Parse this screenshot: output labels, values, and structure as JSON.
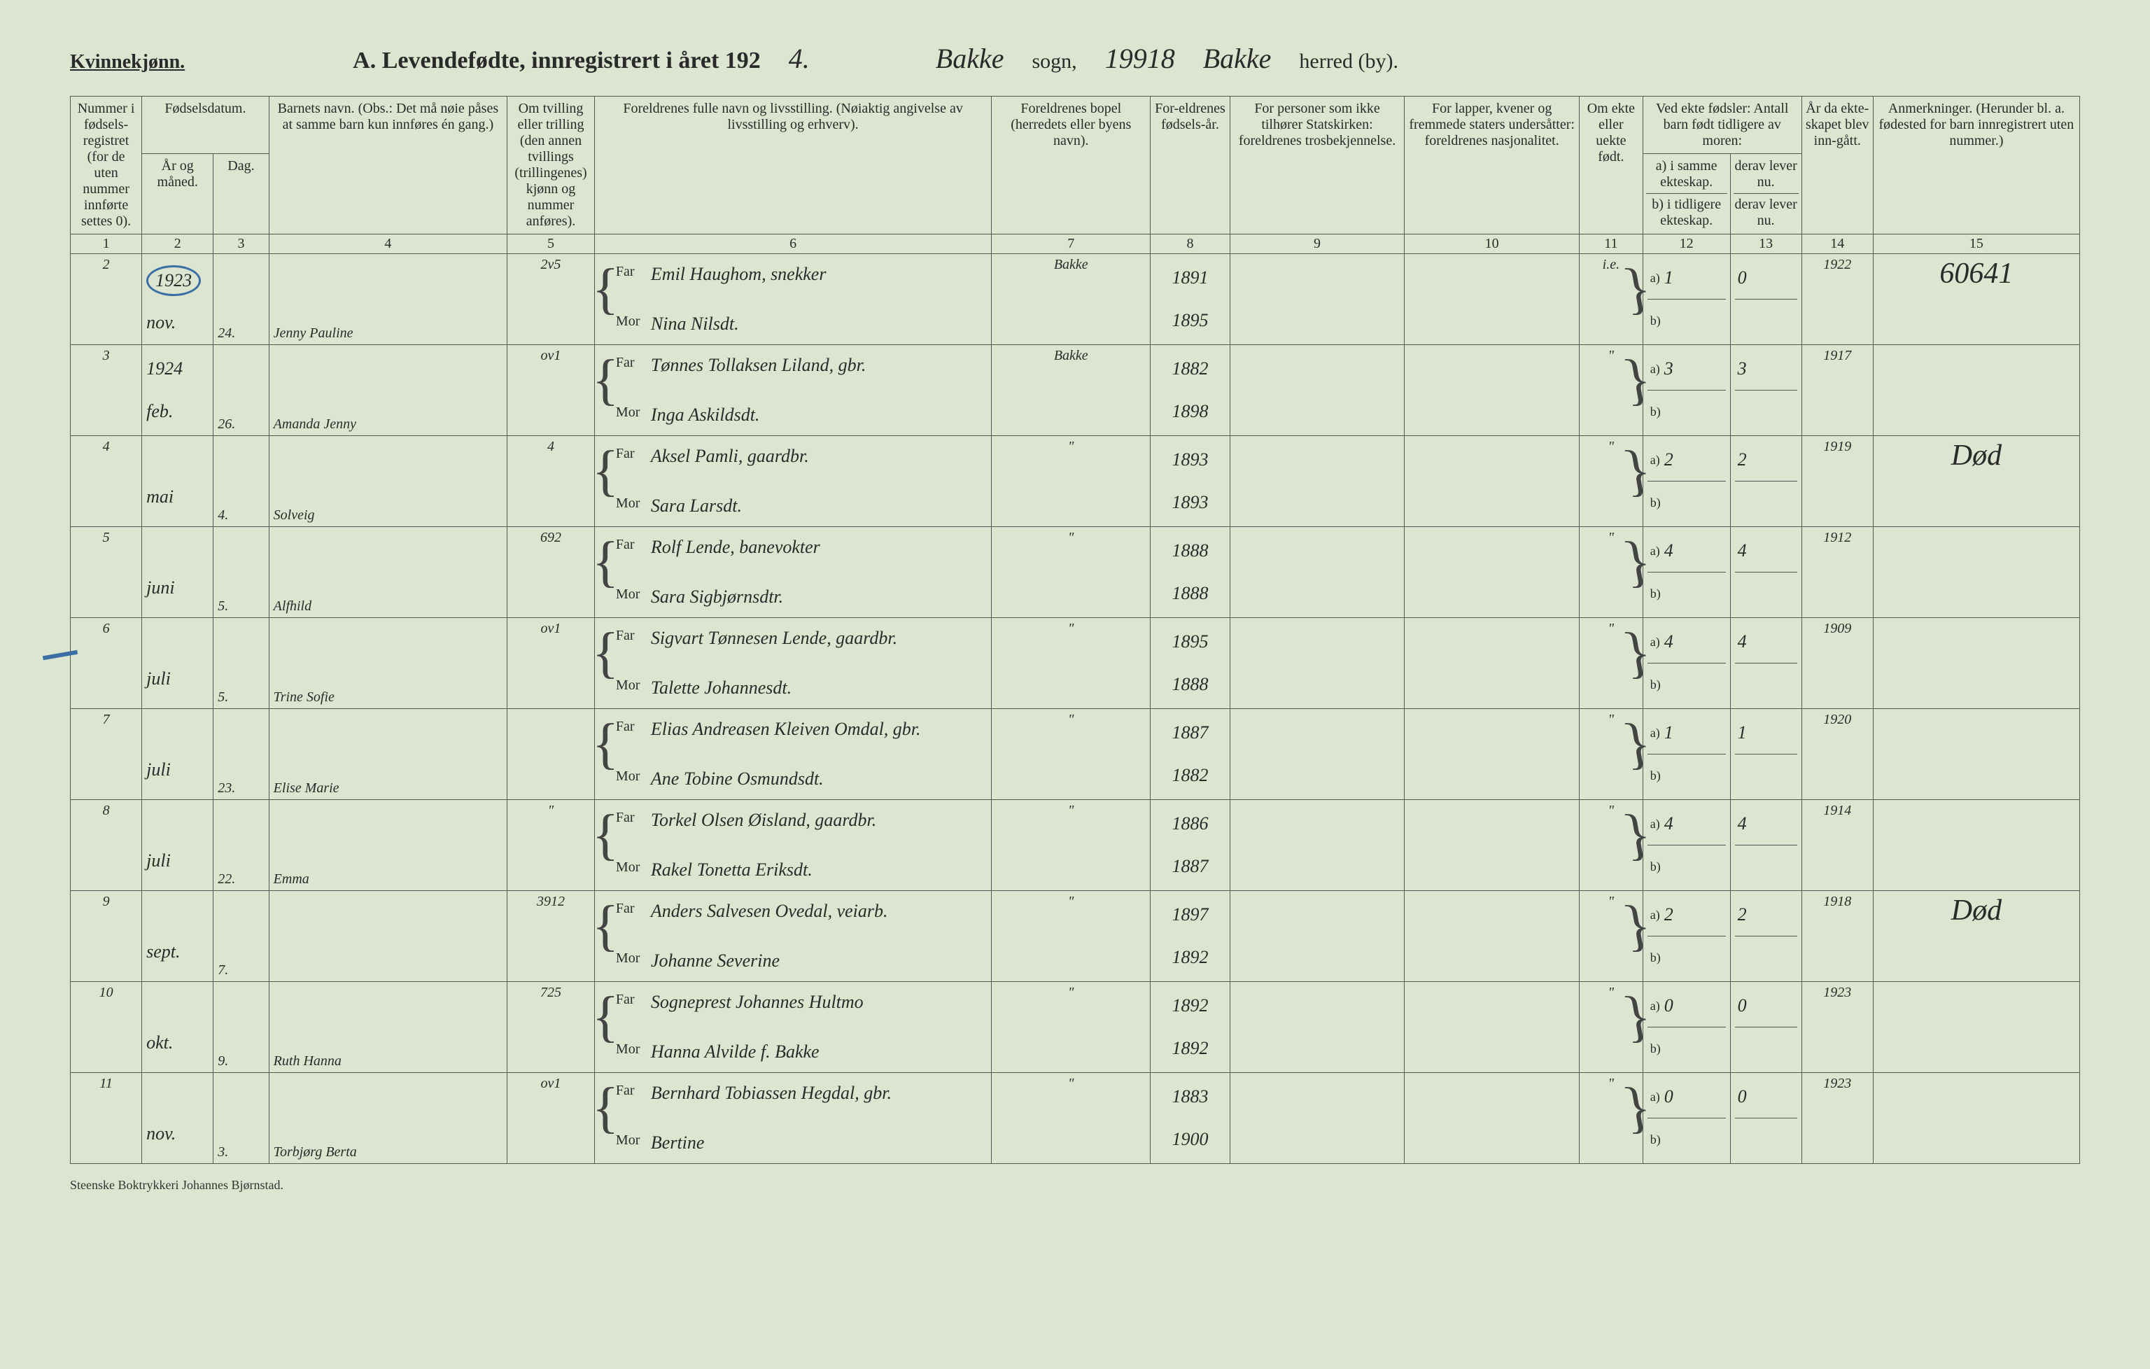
{
  "header": {
    "gender": "Kvinnekjønn.",
    "title_prefix": "A.  Levendefødte, innregistrert i året 192",
    "title_year_hand": "4.",
    "sogn_value": "Bakke",
    "sogn_label": "sogn,",
    "number_value": "19918",
    "herred_value": "Bakke",
    "herred_label": "herred (by)."
  },
  "columns": {
    "c1": "Nummer i fødsels-registret (for de uten nummer innførte settes 0).",
    "c2_top": "Fødselsdatum.",
    "c2a": "År og måned.",
    "c2b": "Dag.",
    "c4": "Barnets navn.\n(Obs.: Det må nøie påses at samme barn kun innføres én gang.)",
    "c5": "Om tvilling eller trilling (den annen tvillings (trillingenes) kjønn og nummer anføres).",
    "c6": "Foreldrenes fulle navn og livsstilling.\n(Nøiaktig angivelse av livsstilling og erhverv).",
    "c7": "Foreldrenes bopel (herredets eller byens navn).",
    "c8": "For-eldrenes fødsels-år.",
    "c9": "For personer som ikke tilhører Statskirken: foreldrenes trosbekjennelse.",
    "c10": "For lapper, kvener og fremmede staters undersåtter: foreldrenes nasjonalitet.",
    "c11": "Om ekte eller uekte født.",
    "c12_top": "Ved ekte fødsler: Antall barn født tidligere av moren:",
    "c12a": "a) i samme ekteskap.",
    "c12b": "b) i tidligere ekteskap.",
    "c13_top": "",
    "c13a": "derav lever nu.",
    "c13b": "derav lever nu.",
    "c14": "År da ekte-skapet blev inn-gått.",
    "c15": "Anmerkninger.\n(Herunder bl. a. fødested for barn innregistrert uten nummer.)"
  },
  "colnums": [
    "1",
    "2",
    "3",
    "4",
    "5",
    "6",
    "7",
    "8",
    "9",
    "10",
    "11",
    "12",
    "13",
    "14",
    "15"
  ],
  "far_label": "Far",
  "mor_label": "Mor",
  "ditto": "\"",
  "rows": [
    {
      "num": "2",
      "year": "1923",
      "month": "nov.",
      "day": "24.",
      "name": "Jenny Pauline",
      "tvil": "2v5",
      "far": "Emil Haughom, snekker",
      "mor": "Nina Nilsdt.",
      "bopel": "Bakke",
      "far_year": "1891",
      "mor_year": "1895",
      "ekte": "i.e.",
      "a": "1",
      "a_lever": "0",
      "b": "",
      "year_m": "1922",
      "anm": "60641",
      "circled": true
    },
    {
      "num": "3",
      "year": "1924",
      "month": "feb.",
      "day": "26.",
      "name": "Amanda Jenny",
      "tvil": "ov1",
      "far": "Tønnes Tollaksen Liland, gbr.",
      "mor": "Inga Askildsdt.",
      "bopel": "Bakke",
      "far_year": "1882",
      "mor_year": "1898",
      "ekte": "\"",
      "a": "3",
      "a_lever": "3",
      "b": "",
      "year_m": "1917",
      "anm": ""
    },
    {
      "num": "4",
      "year": "",
      "month": "mai",
      "day": "4.",
      "name": "Solveig",
      "tvil": "4",
      "far": "Aksel Pamli, gaardbr.",
      "mor": "Sara Larsdt.",
      "bopel": "\"",
      "far_year": "1893",
      "mor_year": "1893",
      "ekte": "\"",
      "a": "2",
      "a_lever": "2",
      "b": "",
      "year_m": "1919",
      "anm": "Død"
    },
    {
      "num": "5",
      "year": "",
      "month": "juni",
      "day": "5.",
      "name": "Alfhild",
      "tvil": "692",
      "far": "Rolf Lende, banevokter",
      "mor": "Sara Sigbjørnsdtr.",
      "bopel": "\"",
      "far_year": "1888",
      "mor_year": "1888",
      "ekte": "\"",
      "a": "4",
      "a_lever": "4",
      "b": "",
      "year_m": "1912",
      "anm": ""
    },
    {
      "num": "6",
      "year": "",
      "month": "juli",
      "day": "5.",
      "name": "Trine Sofie",
      "tvil": "ov1",
      "far": "Sigvart Tønnesen Lende, gaardbr.",
      "mor": "Talette Johannesdt.",
      "bopel": "\"",
      "far_year": "1895",
      "mor_year": "1888",
      "ekte": "\"",
      "a": "4",
      "a_lever": "4",
      "b": "",
      "year_m": "1909",
      "anm": "",
      "dash": true
    },
    {
      "num": "7",
      "year": "",
      "month": "juli",
      "day": "23.",
      "name": "Elise Marie",
      "tvil": "",
      "far": "Elias Andreasen Kleiven Omdal, gbr.",
      "mor": "Ane Tobine Osmundsdt.",
      "bopel": "\"",
      "far_year": "1887",
      "mor_year": "1882",
      "ekte": "\"",
      "a": "1",
      "a_lever": "1",
      "b": "",
      "year_m": "1920",
      "anm": ""
    },
    {
      "num": "8",
      "year": "",
      "month": "juli",
      "day": "22.",
      "name": "Emma",
      "tvil": "\"",
      "far": "Torkel Olsen Øisland, gaardbr.",
      "mor": "Rakel Tonetta Eriksdt.",
      "bopel": "\"",
      "far_year": "1886",
      "mor_year": "1887",
      "ekte": "\"",
      "a": "4",
      "a_lever": "4",
      "b": "",
      "year_m": "1914",
      "anm": ""
    },
    {
      "num": "9",
      "year": "",
      "month": "sept.",
      "day": "7.",
      "name": "",
      "tvil": "3912",
      "far": "Anders Salvesen Ovedal, veiarb.",
      "mor": "Johanne Severine",
      "bopel": "\"",
      "far_year": "1897",
      "mor_year": "1892",
      "ekte": "\"",
      "a": "2",
      "a_lever": "2",
      "b": "",
      "year_m": "1918",
      "anm": "Død"
    },
    {
      "num": "10",
      "year": "",
      "month": "okt.",
      "day": "9.",
      "name": "Ruth Hanna",
      "tvil": "725",
      "far": "Sogneprest Johannes Hultmo",
      "mor": "Hanna Alvilde f. Bakke",
      "bopel": "\"",
      "far_year": "1892",
      "mor_year": "1892",
      "ekte": "\"",
      "a": "0",
      "a_lever": "0",
      "b": "",
      "year_m": "1923",
      "anm": ""
    },
    {
      "num": "11",
      "year": "",
      "month": "nov.",
      "day": "3.",
      "name": "Torbjørg Berta",
      "tvil": "ov1",
      "far": "Bernhard Tobiassen Hegdal, gbr.",
      "mor": "Bertine",
      "bopel": "\"",
      "far_year": "1883",
      "mor_year": "1900",
      "ekte": "\"",
      "a": "0",
      "a_lever": "0",
      "b": "",
      "year_m": "1923",
      "anm": ""
    }
  ],
  "footer": "Steenske Boktrykkeri Johannes Bjørnstad."
}
